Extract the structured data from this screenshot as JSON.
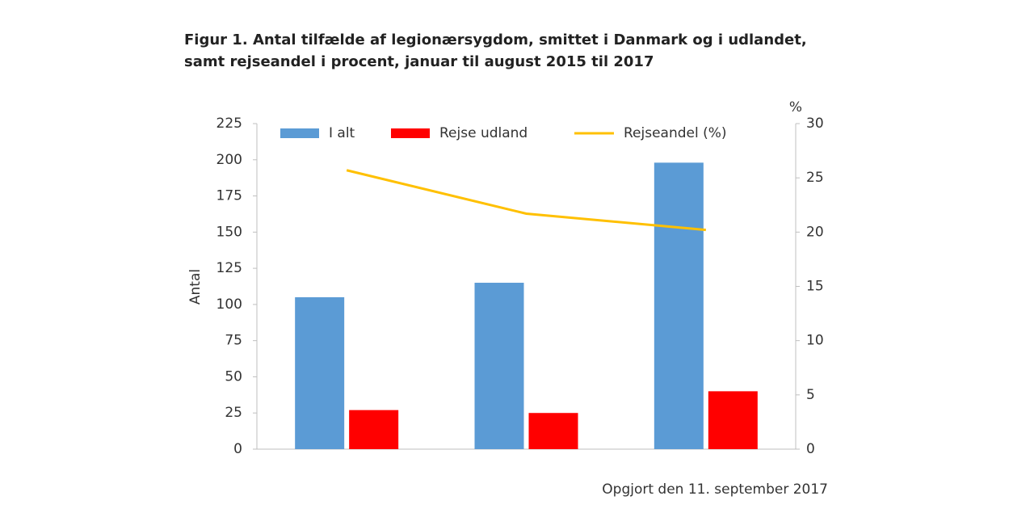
{
  "chart_data": {
    "type": "bar",
    "title": "Figur 1. Antal tilfælde af legionærsygdom, smittet i Danmark og i udlandet, samt rejseandel i procent, januar til august 2015 til 2017",
    "y_label": "Antal",
    "y2_label": "%",
    "note": "Opgjort den 11. september 2017",
    "categories": [
      null,
      null,
      null
    ],
    "series": [
      {
        "name": "I alt",
        "type": "bar",
        "color": "#5b9bd5",
        "values": [
          105,
          115,
          198
        ]
      },
      {
        "name": "Rejse udland",
        "type": "bar",
        "color": "#ff0000",
        "values": [
          27,
          25,
          40
        ]
      },
      {
        "name": "Rejseandel (%)",
        "type": "line",
        "axis": "y2",
        "color": "#ffc000",
        "values": [
          25.7,
          21.7,
          20.2
        ]
      }
    ],
    "ylim": [
      0,
      225
    ],
    "yticks": [
      0,
      25,
      50,
      75,
      100,
      125,
      150,
      175,
      200,
      225
    ],
    "y2lim": [
      0,
      30
    ],
    "y2ticks": [
      0,
      5,
      10,
      15,
      20,
      25,
      30
    ],
    "grid": false,
    "legend": "upper center"
  }
}
